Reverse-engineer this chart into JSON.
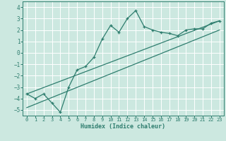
{
  "xlabel": "Humidex (Indice chaleur)",
  "bg_color": "#cce8e0",
  "grid_color": "#ffffff",
  "line_color": "#2e7d6e",
  "xlim": [
    -0.5,
    23.5
  ],
  "ylim": [
    -5.5,
    4.5
  ],
  "xticks": [
    0,
    1,
    2,
    3,
    4,
    5,
    6,
    7,
    8,
    9,
    10,
    11,
    12,
    13,
    14,
    15,
    16,
    17,
    18,
    19,
    20,
    21,
    22,
    23
  ],
  "yticks": [
    -5,
    -4,
    -3,
    -2,
    -1,
    0,
    1,
    2,
    3,
    4
  ],
  "curve_x": [
    0,
    1,
    2,
    3,
    4,
    5,
    6,
    7,
    8,
    9,
    10,
    11,
    12,
    13,
    14,
    15,
    16,
    17,
    18,
    19,
    20,
    21,
    22,
    23
  ],
  "curve_y": [
    -3.6,
    -4.0,
    -3.6,
    -4.4,
    -5.2,
    -3.0,
    -1.5,
    -1.2,
    -0.4,
    1.2,
    2.4,
    1.8,
    3.0,
    3.7,
    2.3,
    2.0,
    1.8,
    1.7,
    1.5,
    2.0,
    2.1,
    2.1,
    2.6,
    2.8
  ],
  "line1_x": [
    0,
    23
  ],
  "line1_y": [
    -3.6,
    2.8
  ],
  "line2_x": [
    0,
    23
  ],
  "line2_y": [
    -4.8,
    2.0
  ]
}
